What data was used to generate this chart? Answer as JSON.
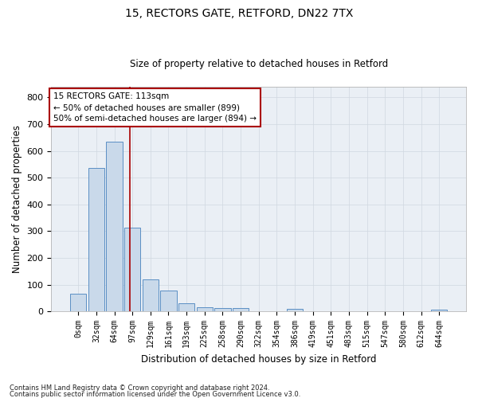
{
  "title1": "15, RECTORS GATE, RETFORD, DN22 7TX",
  "title2": "Size of property relative to detached houses in Retford",
  "xlabel": "Distribution of detached houses by size in Retford",
  "ylabel": "Number of detached properties",
  "footnote1": "Contains HM Land Registry data © Crown copyright and database right 2024.",
  "footnote2": "Contains public sector information licensed under the Open Government Licence v3.0.",
  "bar_labels": [
    "0sqm",
    "32sqm",
    "64sqm",
    "97sqm",
    "129sqm",
    "161sqm",
    "193sqm",
    "225sqm",
    "258sqm",
    "290sqm",
    "322sqm",
    "354sqm",
    "386sqm",
    "419sqm",
    "451sqm",
    "483sqm",
    "515sqm",
    "547sqm",
    "580sqm",
    "612sqm",
    "644sqm"
  ],
  "bar_values": [
    65,
    535,
    635,
    313,
    120,
    78,
    30,
    15,
    11,
    11,
    0,
    0,
    9,
    0,
    0,
    0,
    0,
    0,
    0,
    0,
    6
  ],
  "bar_color": "#c9d9ea",
  "bar_edge_color": "#5b8fc4",
  "grid_color": "#d0d8e0",
  "bg_color": "#eaeff5",
  "vline_x_index": 2.85,
  "vline_color": "#aa0000",
  "annotation_line1": "15 RECTORS GATE: 113sqm",
  "annotation_line2": "← 50% of detached houses are smaller (899)",
  "annotation_line3": "50% of semi-detached houses are larger (894) →",
  "annotation_box_color": "#ffffff",
  "annotation_box_edge": "#aa0000",
  "ylim": [
    0,
    840
  ],
  "yticks": [
    0,
    100,
    200,
    300,
    400,
    500,
    600,
    700,
    800
  ]
}
